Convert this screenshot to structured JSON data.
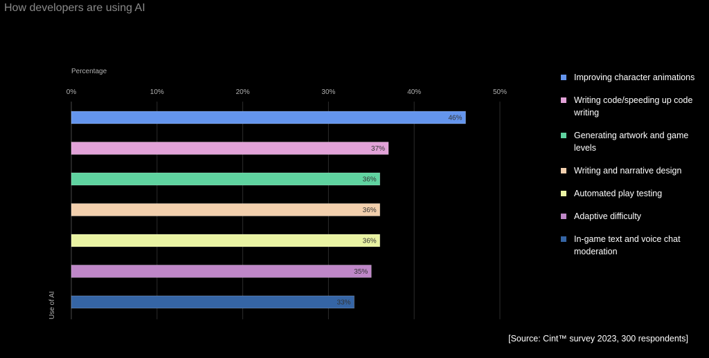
{
  "title": "How developers are using AI",
  "source": "[Source: Cint™ survey 2023, 300 respondents]",
  "chart_data": {
    "type": "bar",
    "orientation": "horizontal",
    "xlabel": "Percentage",
    "ylabel": "Use of AI",
    "xlim": [
      0,
      50
    ],
    "ticks": [
      0,
      10,
      20,
      30,
      40,
      50
    ],
    "tick_labels": [
      "0%",
      "10%",
      "20%",
      "30%",
      "40%",
      "50%"
    ],
    "grid": true,
    "legend_position": "right",
    "categories": [
      "Improving character animations",
      "Writing code/speeding up code writing",
      "Generating artwork and game levels",
      "Writing and narrative design",
      "Automated play testing",
      "Adaptive difficulty",
      "In-game text and voice chat moderation"
    ],
    "values": [
      46,
      37,
      36,
      36,
      36,
      35,
      33
    ],
    "value_labels": [
      "46%",
      "37%",
      "36%",
      "36%",
      "36%",
      "35%",
      "33%"
    ],
    "colors": [
      "#6495ed",
      "#e2a2d8",
      "#5fd3a0",
      "#f2cfad",
      "#e9f3a3",
      "#bf87c8",
      "#3565a5"
    ]
  }
}
